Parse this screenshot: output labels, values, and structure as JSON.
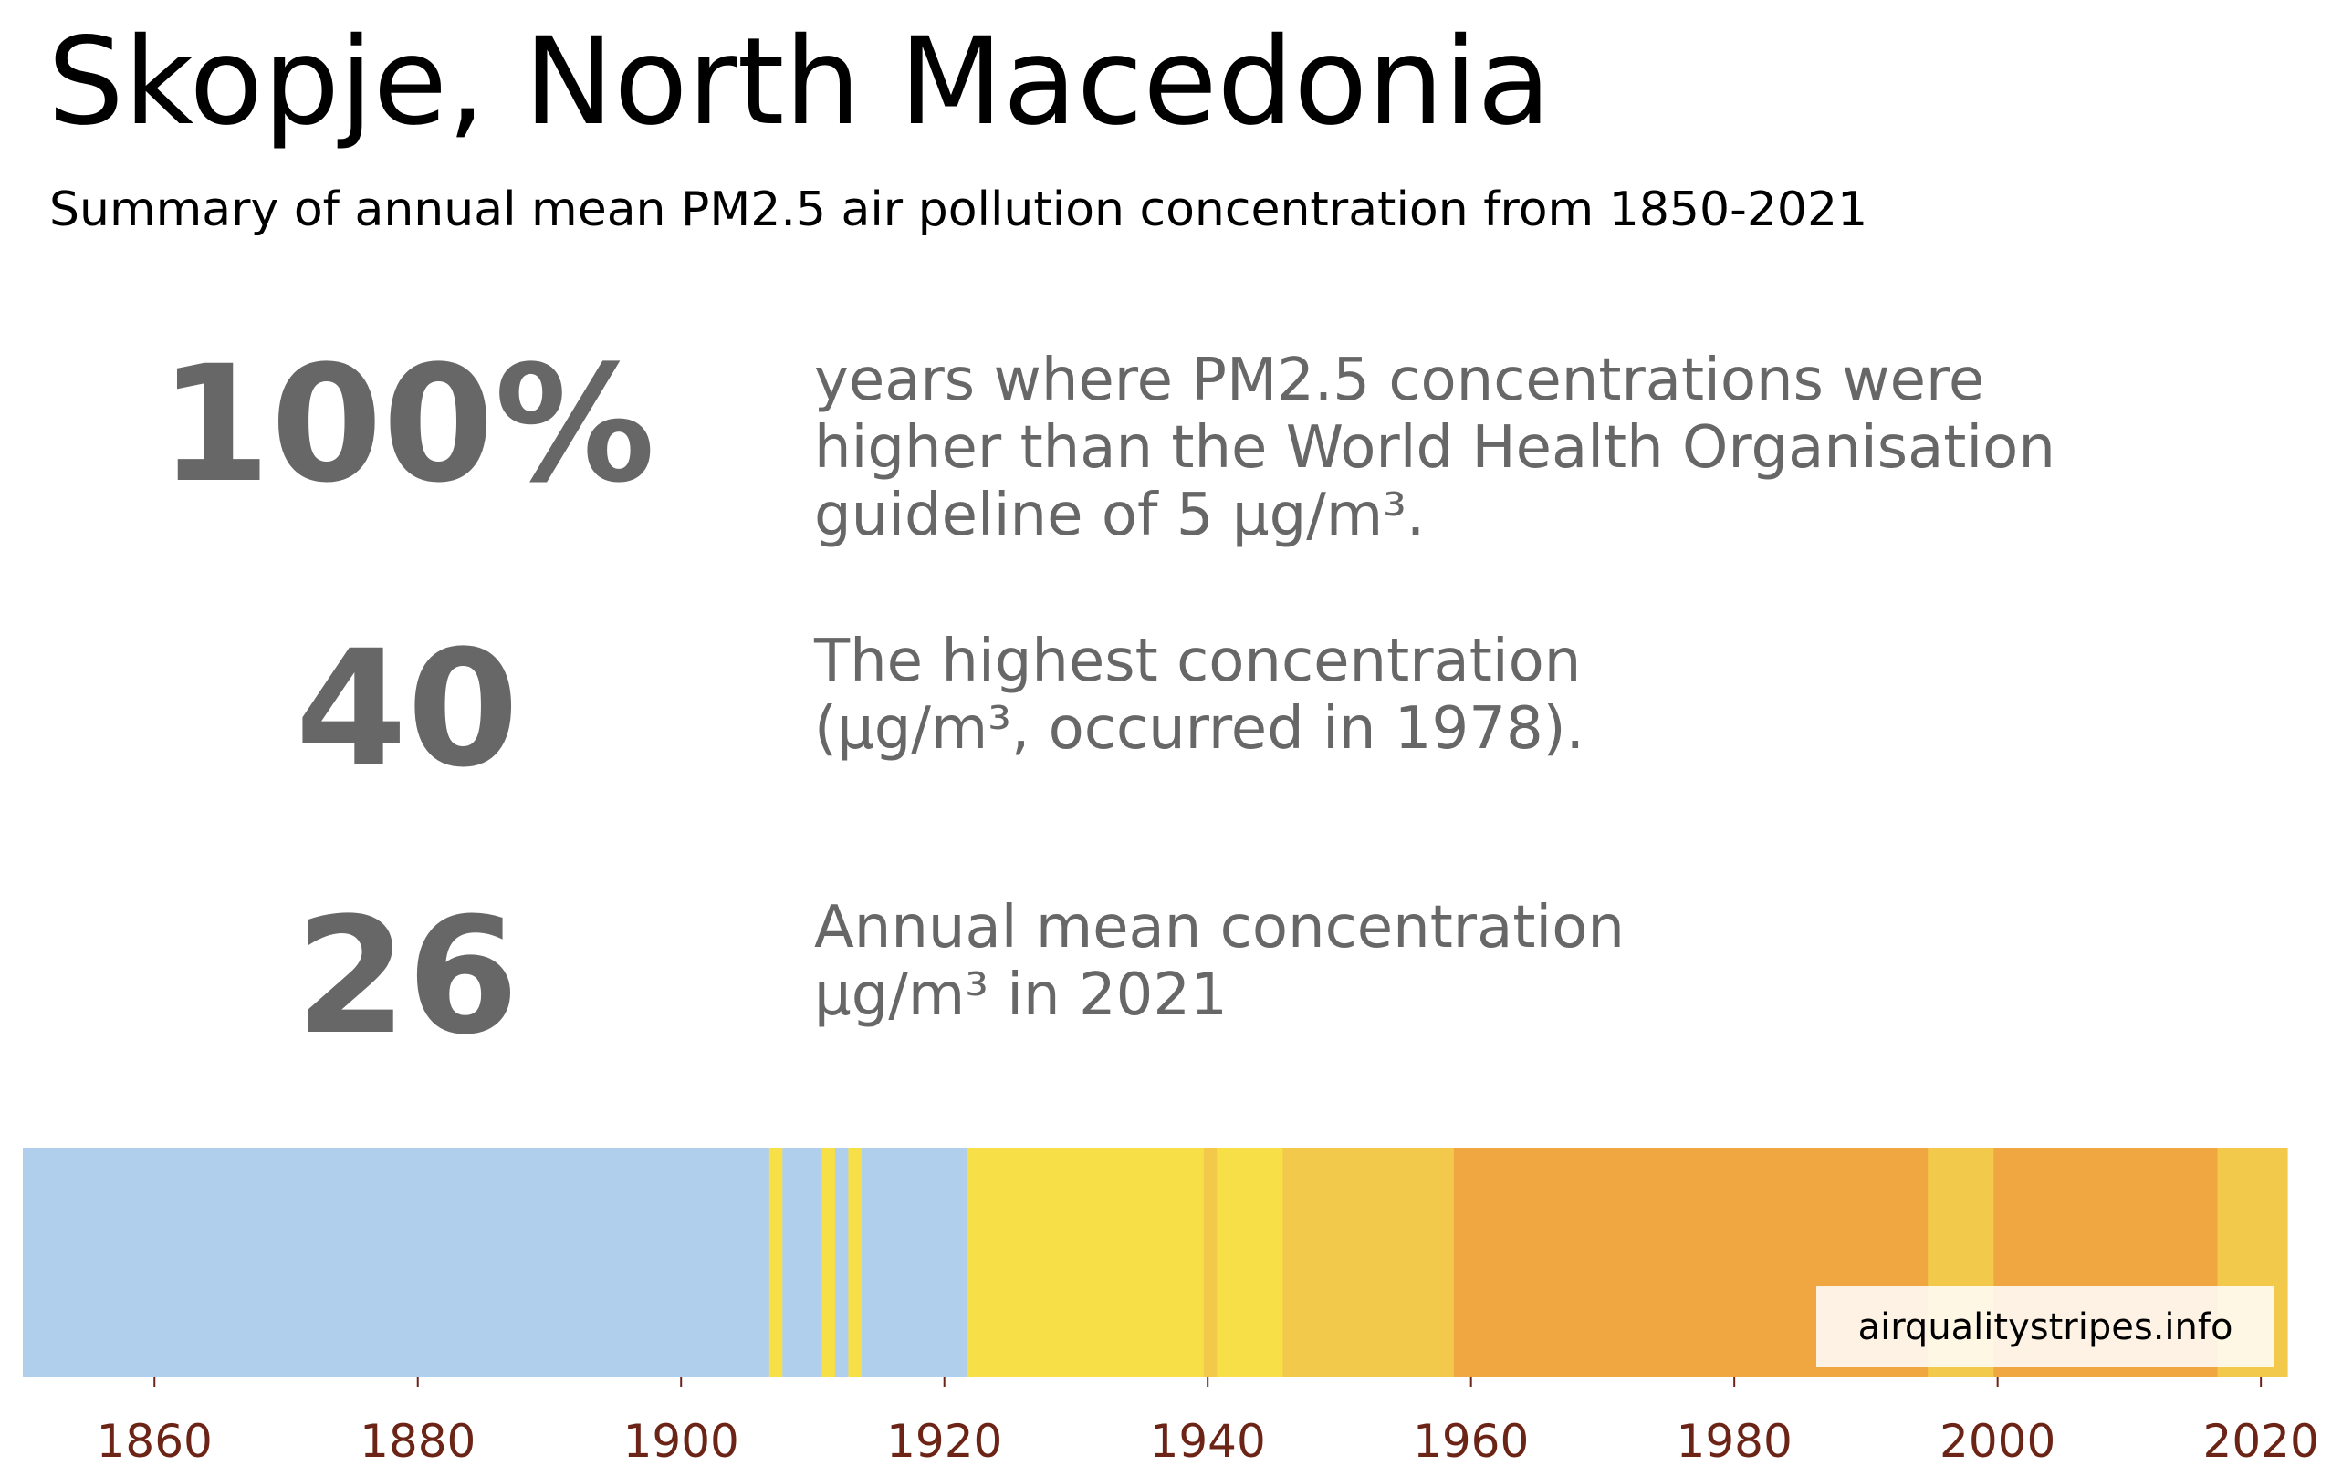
{
  "title": "Skopje, North Macedonia",
  "subtitle": "Summary of annual mean PM2.5 air pollution concentration from 1850-2021",
  "stats": [
    {
      "value": "100%",
      "lines": [
        "years where PM2.5 concentrations were",
        "higher than the World Health Organisation",
        "guideline of 5 µg/m³."
      ]
    },
    {
      "value": "40",
      "lines": [
        "The highest concentration",
        "(µg/m³, occurred in 1978)."
      ]
    },
    {
      "value": "26",
      "lines": [
        "Annual mean concentration",
        "µg/m³ in 2021"
      ]
    }
  ],
  "chart_data": {
    "type": "heatmap",
    "x_start": 1850,
    "x_end": 2022,
    "xticks": [
      "1860",
      "1880",
      "1900",
      "1920",
      "1940",
      "1960",
      "1980",
      "2000",
      "2020"
    ],
    "segments": [
      {
        "start": 1850,
        "end": 1906.7,
        "color": "#b0cfed"
      },
      {
        "start": 1906.7,
        "end": 1907.7,
        "color": "#f7df48"
      },
      {
        "start": 1907.7,
        "end": 1910.7,
        "color": "#b0cfed"
      },
      {
        "start": 1910.7,
        "end": 1911.7,
        "color": "#f7df48"
      },
      {
        "start": 1911.7,
        "end": 1912.7,
        "color": "#b0cfed"
      },
      {
        "start": 1912.7,
        "end": 1913.7,
        "color": "#f7df48"
      },
      {
        "start": 1913.7,
        "end": 1921.7,
        "color": "#b0cfed"
      },
      {
        "start": 1921.7,
        "end": 1939.7,
        "color": "#f7df48"
      },
      {
        "start": 1939.7,
        "end": 1940.7,
        "color": "#f2c94a"
      },
      {
        "start": 1940.7,
        "end": 1945.7,
        "color": "#f7df48"
      },
      {
        "start": 1945.7,
        "end": 1958.7,
        "color": "#f2c94a"
      },
      {
        "start": 1958.7,
        "end": 1994.7,
        "color": "#f0a742"
      },
      {
        "start": 1994.7,
        "end": 1999.7,
        "color": "#f2c94a"
      },
      {
        "start": 1999.7,
        "end": 2016.7,
        "color": "#f0a742"
      },
      {
        "start": 2016.7,
        "end": 2022,
        "color": "#f2c94a"
      }
    ],
    "watermark": "airqualitystripes.info",
    "tick_color": "#6b2416"
  }
}
